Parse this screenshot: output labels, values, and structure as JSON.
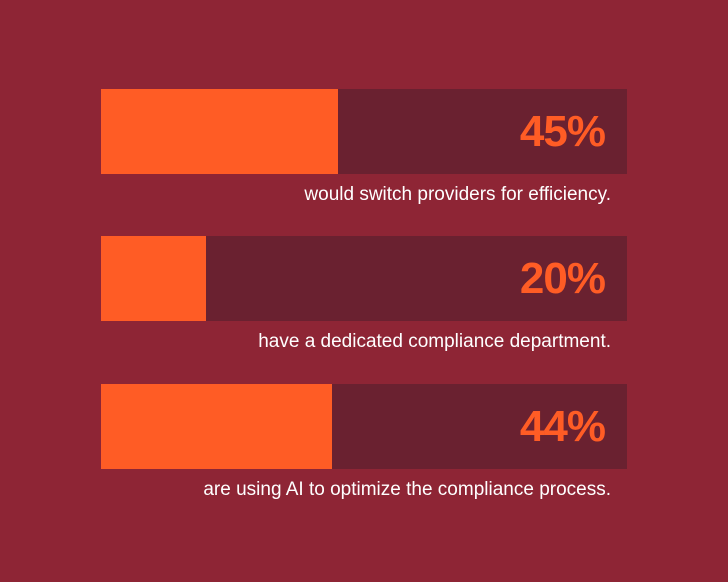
{
  "colors": {
    "background": "#8e2535",
    "track": "#6a2130",
    "fill": "#ff5c25",
    "percent_text": "#ff5c25",
    "caption_text": "#ffffff"
  },
  "rows": [
    {
      "percent_label": "45%",
      "caption": "would switch providers for efficiency."
    },
    {
      "percent_label": "20%",
      "caption": "have a dedicated compliance department."
    },
    {
      "percent_label": "44%",
      "caption": "are using AI to optimize the compliance process."
    }
  ],
  "chart_data": {
    "type": "bar",
    "orientation": "horizontal",
    "categories": [
      "would switch providers for efficiency.",
      "have a dedicated compliance department.",
      "are using AI to optimize the compliance process."
    ],
    "values": [
      45,
      20,
      44
    ],
    "unit": "%",
    "xlim": [
      0,
      100
    ],
    "grid": false,
    "legend": "none"
  }
}
